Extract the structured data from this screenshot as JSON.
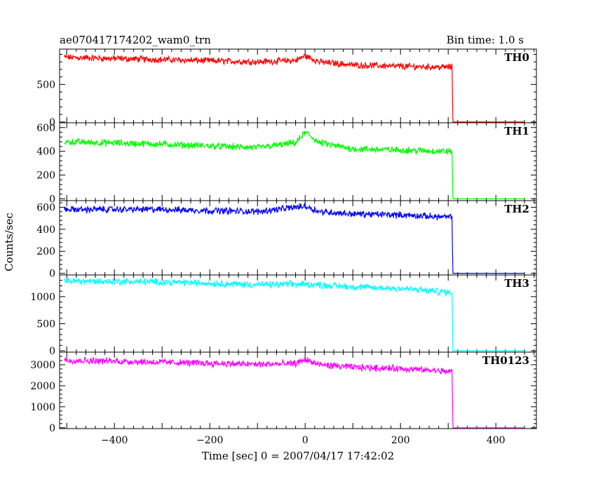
{
  "chart_data": {
    "type": "line",
    "title": "ae070417174202_wam0_trn",
    "subtitle": "Bin time: 1.0 s",
    "xlabel": "Time [sec] 0 = 2007/04/17 17:42:02",
    "ylabel": "Counts/sec",
    "xlim": [
      -515,
      485
    ],
    "x_ticks": [
      -400,
      -200,
      0,
      200,
      400
    ],
    "grid": false,
    "panels": [
      {
        "name": "TH0",
        "color": "#ff0000",
        "ylim": [
          -10,
          970
        ],
        "y_ticks": [
          0,
          500
        ],
        "points": [
          [
            -505,
            860
          ],
          [
            -300,
            830
          ],
          [
            -100,
            800
          ],
          [
            -20,
            820
          ],
          [
            0,
            880
          ],
          [
            30,
            800
          ],
          [
            100,
            760
          ],
          [
            200,
            740
          ],
          [
            300,
            730
          ],
          [
            308,
            730
          ],
          [
            310,
            0
          ],
          [
            460,
            0
          ]
        ]
      },
      {
        "name": "TH1",
        "color": "#00ff00",
        "ylim": [
          -15,
          640
        ],
        "y_ticks": [
          0,
          200,
          400,
          600
        ],
        "points": [
          [
            -505,
            480
          ],
          [
            -300,
            460
          ],
          [
            -100,
            430
          ],
          [
            -20,
            470
          ],
          [
            0,
            560
          ],
          [
            30,
            470
          ],
          [
            100,
            420
          ],
          [
            200,
            410
          ],
          [
            300,
            400
          ],
          [
            308,
            400
          ],
          [
            310,
            0
          ],
          [
            460,
            0
          ]
        ]
      },
      {
        "name": "TH2",
        "color": "#0000ff",
        "ylim": [
          -15,
          660
        ],
        "y_ticks": [
          0,
          200,
          400,
          600
        ],
        "points": [
          [
            -505,
            580
          ],
          [
            -300,
            580
          ],
          [
            -100,
            560
          ],
          [
            0,
            610
          ],
          [
            30,
            560
          ],
          [
            100,
            540
          ],
          [
            200,
            530
          ],
          [
            300,
            510
          ],
          [
            308,
            510
          ],
          [
            310,
            0
          ],
          [
            460,
            0
          ]
        ]
      },
      {
        "name": "TH3",
        "color": "#00ffff",
        "ylim": [
          -25,
          1400
        ],
        "y_ticks": [
          0,
          500,
          1000
        ],
        "points": [
          [
            -505,
            1290
          ],
          [
            -300,
            1270
          ],
          [
            -100,
            1220
          ],
          [
            0,
            1230
          ],
          [
            100,
            1180
          ],
          [
            200,
            1150
          ],
          [
            300,
            1080
          ],
          [
            308,
            1090
          ],
          [
            310,
            0
          ],
          [
            460,
            0
          ]
        ]
      },
      {
        "name": "TH0123",
        "color": "#ff00ff",
        "ylim": [
          -40,
          3600
        ],
        "y_ticks": [
          0,
          1000,
          2000,
          3000
        ],
        "points": [
          [
            -505,
            3220
          ],
          [
            -300,
            3120
          ],
          [
            -100,
            3020
          ],
          [
            -20,
            3050
          ],
          [
            0,
            3250
          ],
          [
            30,
            3000
          ],
          [
            100,
            2880
          ],
          [
            200,
            2820
          ],
          [
            300,
            2680
          ],
          [
            308,
            2700
          ],
          [
            310,
            0
          ],
          [
            460,
            0
          ]
        ]
      }
    ]
  }
}
